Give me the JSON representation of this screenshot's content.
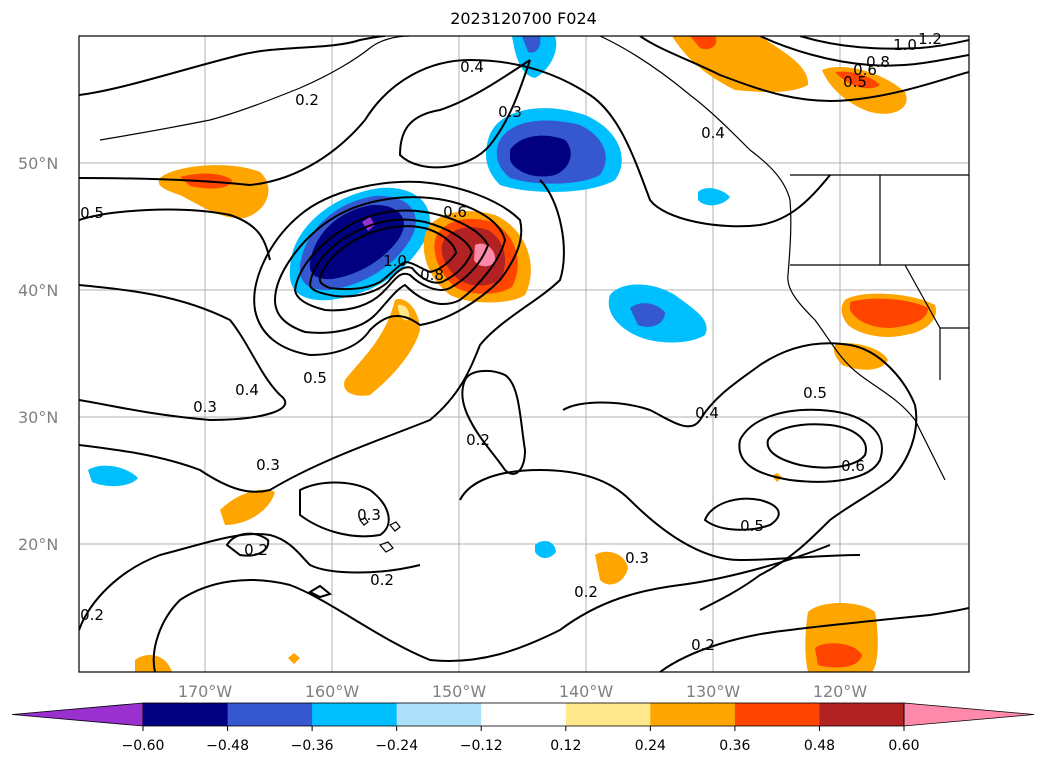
{
  "title": "2023120700 F024",
  "map": {
    "lat_labels": [
      "50°N",
      "40°N",
      "30°N",
      "20°N"
    ],
    "lon_labels": [
      "170°W",
      "160°W",
      "150°W",
      "140°W",
      "130°W",
      "120°W"
    ],
    "contour_labels": [
      "0.2",
      "0.4",
      "0.3",
      "0.5",
      "0.6",
      "1.0",
      "0.8",
      "0.5",
      "0.4",
      "0.3",
      "0.3",
      "0.2",
      "0.3",
      "0.2",
      "0.2",
      "0.2",
      "0.4",
      "0.5",
      "0.6",
      "0.5",
      "0.3",
      "0.2",
      "0.2",
      "0.4",
      "0.8",
      "0.6",
      "0.5",
      "1.0",
      "1.2"
    ]
  },
  "colorbar": {
    "ticks": [
      "−0.60",
      "−0.48",
      "−0.36",
      "−0.24",
      "−0.12",
      "0.12",
      "0.24",
      "0.36",
      "0.48",
      "0.60"
    ],
    "colors": [
      "#9b30d0",
      "#000080",
      "#3558d0",
      "#00bfff",
      "#aee1f9",
      "#ffffff",
      "#ffe98c",
      "#ffa500",
      "#ff4500",
      "#b22222",
      "#ff89ab"
    ]
  }
}
